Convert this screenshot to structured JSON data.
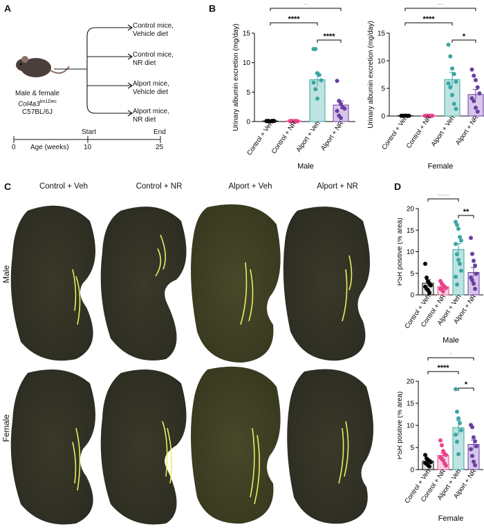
{
  "panels": {
    "a": "A",
    "b": "B",
    "c": "C",
    "d": "D"
  },
  "design": {
    "groups": [
      "Control mice,\nVehicle diet",
      "Control mice,\nNR diet",
      "Alport mice,\nVehicle diet",
      "Alport mice,\nNR diet"
    ],
    "mouse_label_1": "Male & female",
    "mouse_label_2": "Col4a3",
    "mouse_label_2_sup": "tm1Dec",
    "mouse_label_3": "C57BL/6J",
    "timeline": {
      "start_label": "Start",
      "end_label": "End",
      "t0": "0",
      "t1": "10",
      "t2": "25",
      "axis_label": "Age (weeks)"
    }
  },
  "micrographs": {
    "columns": [
      "Control + Veh",
      "Control + NR",
      "Alport + Veh",
      "Alport + NR"
    ],
    "rows": [
      "Male",
      "Female"
    ]
  },
  "colors": {
    "veh": "#000000",
    "nr": "#e8428a",
    "alport_veh": "#3aa6a0",
    "alport_nr": "#6a3fa0"
  },
  "chart_data": [
    {
      "id": "B-male",
      "type": "bar",
      "title": "",
      "xlabel": "Male",
      "ylabel": "Urinary albumin excretion (mg/day)",
      "categories": [
        "Control + Veh",
        "Control + NR",
        "Alport + Veh",
        "Alport + NR"
      ],
      "values": [
        0.1,
        0.1,
        7.1,
        2.8
      ],
      "errors": [
        0.05,
        0.05,
        1.1,
        0.7
      ],
      "points": [
        [
          0.1,
          0.1,
          0.05,
          0.12,
          0.1,
          0.08
        ],
        [
          0.05,
          0.1,
          0.08,
          0.1,
          0.06,
          0.1
        ],
        [
          12.3,
          12.3,
          8.2,
          7.9,
          7.0,
          6.6,
          5.5,
          3.9
        ],
        [
          6.9,
          3.5,
          3.0,
          2.4,
          2.2,
          1.8,
          1.0,
          0.6
        ]
      ],
      "ylim": [
        0,
        15
      ],
      "yticks": [
        0,
        5,
        10,
        15
      ],
      "significance": [
        {
          "from": 0,
          "to": 3,
          "label": "*"
        },
        {
          "from": 0,
          "to": 2,
          "label": "****"
        },
        {
          "from": 2,
          "to": 3,
          "label": "****"
        }
      ]
    },
    {
      "id": "B-female",
      "type": "bar",
      "title": "",
      "xlabel": "Female",
      "ylabel": "Urinary albumin excretion (mg/day)",
      "categories": [
        "Control + Veh",
        "Control + NR",
        "Alport + Veh",
        "Alport + NR"
      ],
      "values": [
        0.05,
        0.05,
        6.6,
        3.9
      ],
      "errors": [
        0.02,
        0.02,
        1.3,
        0.9
      ],
      "points": [
        [
          0.05,
          0.04,
          0.06,
          0.05,
          0.05,
          0.03
        ],
        [
          0.05,
          0.04,
          0.06,
          0.05,
          0.05
        ],
        [
          12.9,
          10.8,
          8.6,
          7.6,
          6.2,
          5.9,
          5.2,
          3.8,
          2.2,
          1.3
        ],
        [
          8.4,
          7.3,
          6.5,
          5.2,
          4.1,
          3.2,
          2.7,
          1.5,
          0.8
        ]
      ],
      "ylim": [
        0,
        15
      ],
      "yticks": [
        0,
        5,
        10,
        15
      ],
      "significance": [
        {
          "from": 0,
          "to": 3,
          "label": "**"
        },
        {
          "from": 0,
          "to": 2,
          "label": "****"
        },
        {
          "from": 2,
          "to": 3,
          "label": "*"
        }
      ]
    },
    {
      "id": "D-male",
      "type": "bar",
      "title": "",
      "xlabel": "Male",
      "ylabel": "PSR positive (% area)",
      "categories": [
        "Control + Veh",
        "Control + NR",
        "Alport + Veh",
        "Alport + NR"
      ],
      "values": [
        2.7,
        1.9,
        10.5,
        5.2
      ],
      "errors": [
        0.8,
        0.3,
        1.4,
        1.1
      ],
      "points": [
        [
          7.2,
          4.0,
          3.1,
          2.7,
          2.2,
          1.9,
          1.4,
          1.1,
          0.5
        ],
        [
          3.2,
          2.6,
          2.2,
          1.9,
          1.6,
          1.4,
          1.2,
          0.8
        ],
        [
          16.9,
          16.2,
          15.3,
          13.4,
          12.6,
          11.8,
          9.4,
          8.1,
          7.2,
          5.6,
          4.2,
          2.4
        ],
        [
          13.2,
          9.5,
          7.9,
          6.8,
          4.9,
          4.0,
          3.4,
          2.6,
          1.4
        ]
      ],
      "ylim": [
        0,
        20
      ],
      "yticks": [
        0,
        5,
        10,
        15,
        20
      ],
      "significance": [
        {
          "from": 0,
          "to": 2,
          "label": "****"
        },
        {
          "from": 2,
          "to": 3,
          "label": "**"
        }
      ]
    },
    {
      "id": "D-female",
      "type": "bar",
      "title": "",
      "xlabel": "Female",
      "ylabel": "PSR positive (% area)",
      "categories": [
        "Control + Veh",
        "Control + NR",
        "Alport + Veh",
        "Alport + NR"
      ],
      "values": [
        1.9,
        3.2,
        9.5,
        5.7
      ],
      "errors": [
        0.3,
        0.5,
        1.6,
        1.0
      ],
      "points": [
        [
          3.3,
          2.5,
          2.2,
          2.0,
          1.7,
          1.5,
          1.3,
          1.0,
          0.7
        ],
        [
          6.6,
          5.5,
          4.2,
          3.6,
          3.3,
          2.8,
          2.4,
          2.1,
          1.4,
          0.9
        ],
        [
          18.2,
          13.1,
          11.6,
          10.5,
          8.9,
          7.9,
          6.3,
          3.5
        ],
        [
          10.1,
          9.6,
          7.3,
          6.4,
          5.3,
          4.6,
          3.1,
          1.8,
          1.0
        ]
      ],
      "ylim": [
        0,
        20
      ],
      "yticks": [
        0,
        5,
        10,
        15,
        20
      ],
      "significance": [
        {
          "from": 0,
          "to": 3,
          "label": "*"
        },
        {
          "from": 0,
          "to": 2,
          "label": "****"
        },
        {
          "from": 2,
          "to": 3,
          "label": "*"
        }
      ]
    }
  ]
}
